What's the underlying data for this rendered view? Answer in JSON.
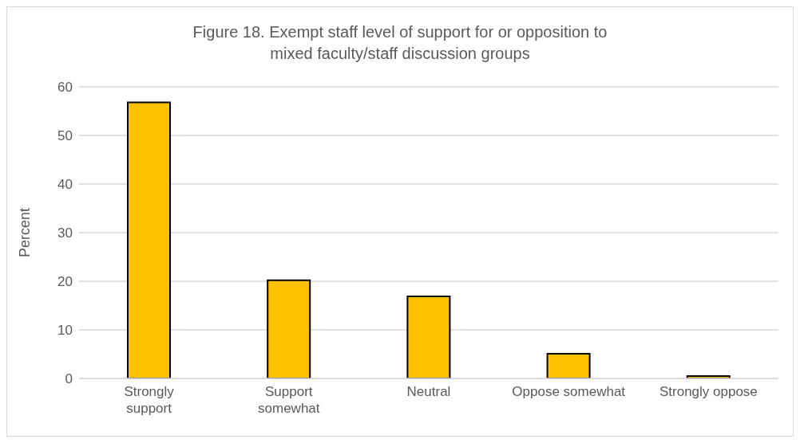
{
  "chart_data": {
    "type": "bar",
    "title": "Figure 18. Exempt staff level of support for or opposition to mixed faculty/staff discussion groups",
    "ylabel": "Percent",
    "categories": [
      "Strongly support",
      "Support somewhat",
      "Neutral",
      "Oppose somewhat",
      "Strongly oppose"
    ],
    "values": [
      56.8,
      20.2,
      16.9,
      5.1,
      0.5
    ],
    "color": "#ffc000",
    "ylim": [
      0,
      60
    ],
    "yticks": [
      0,
      10,
      20,
      30,
      40,
      50,
      60
    ],
    "grid": "y",
    "legend": false
  }
}
